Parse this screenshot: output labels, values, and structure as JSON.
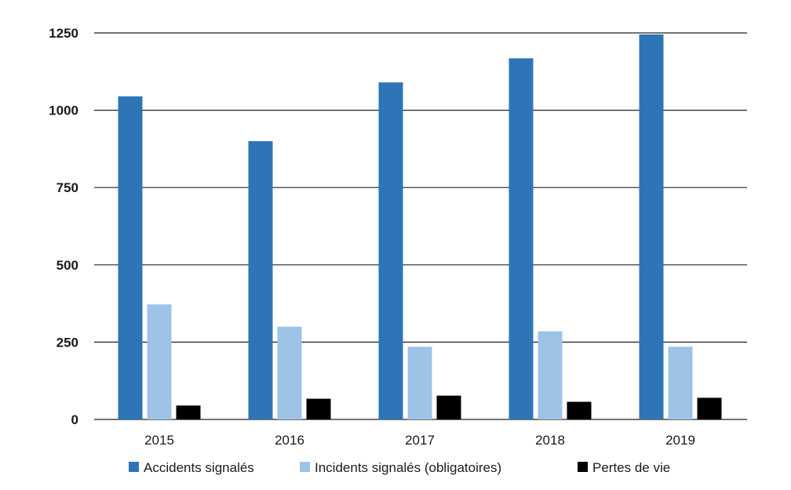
{
  "chart_data": {
    "type": "bar",
    "title": "",
    "xlabel": "",
    "ylabel": "",
    "categories": [
      "2015",
      "2016",
      "2017",
      "2018",
      "2019"
    ],
    "series": [
      {
        "name": "Accidents signalés",
        "color": "#2e75b6",
        "values": [
          1045,
          900,
          1090,
          1168,
          1245
        ]
      },
      {
        "name": "Incidents signalés (obligatoires)",
        "color": "#9dc3e6",
        "values": [
          372,
          300,
          235,
          285,
          235
        ]
      },
      {
        "name": "Pertes de vie",
        "color": "#000000",
        "values": [
          45,
          67,
          77,
          57,
          70
        ]
      }
    ],
    "ylim": [
      0,
      1250
    ],
    "yticks": [
      "0",
      "250",
      "500",
      "750",
      "1000",
      "1250"
    ],
    "grid": true,
    "legend_position": "bottom"
  }
}
